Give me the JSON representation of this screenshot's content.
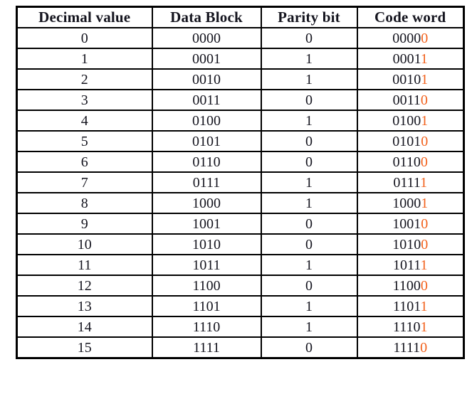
{
  "table": {
    "headers": [
      "Decimal value",
      "Data Block",
      "Parity bit",
      "Code word"
    ],
    "rows": [
      {
        "decimal": "0",
        "data_block": "0000",
        "parity_bit": "0",
        "code_word_data": "0000",
        "code_word_parity": "0"
      },
      {
        "decimal": "1",
        "data_block": "0001",
        "parity_bit": "1",
        "code_word_data": "0001",
        "code_word_parity": "1"
      },
      {
        "decimal": "2",
        "data_block": "0010",
        "parity_bit": "1",
        "code_word_data": "0010",
        "code_word_parity": "1"
      },
      {
        "decimal": "3",
        "data_block": "0011",
        "parity_bit": "0",
        "code_word_data": "0011",
        "code_word_parity": "0"
      },
      {
        "decimal": "4",
        "data_block": "0100",
        "parity_bit": "1",
        "code_word_data": "0100",
        "code_word_parity": "1"
      },
      {
        "decimal": "5",
        "data_block": "0101",
        "parity_bit": "0",
        "code_word_data": "0101",
        "code_word_parity": "0"
      },
      {
        "decimal": "6",
        "data_block": "0110",
        "parity_bit": "0",
        "code_word_data": "0110",
        "code_word_parity": "0"
      },
      {
        "decimal": "7",
        "data_block": "0111",
        "parity_bit": "1",
        "code_word_data": "0111",
        "code_word_parity": "1"
      },
      {
        "decimal": "8",
        "data_block": "1000",
        "parity_bit": "1",
        "code_word_data": "1000",
        "code_word_parity": "1"
      },
      {
        "decimal": "9",
        "data_block": "1001",
        "parity_bit": "0",
        "code_word_data": "1001",
        "code_word_parity": "0"
      },
      {
        "decimal": "10",
        "data_block": "1010",
        "parity_bit": "0",
        "code_word_data": "1010",
        "code_word_parity": "0"
      },
      {
        "decimal": "11",
        "data_block": "1011",
        "parity_bit": "1",
        "code_word_data": "1011",
        "code_word_parity": "1"
      },
      {
        "decimal": "12",
        "data_block": "1100",
        "parity_bit": "0",
        "code_word_data": "1100",
        "code_word_parity": "0"
      },
      {
        "decimal": "13",
        "data_block": "1101",
        "parity_bit": "1",
        "code_word_data": "1101",
        "code_word_parity": "1"
      },
      {
        "decimal": "14",
        "data_block": "1110",
        "parity_bit": "1",
        "code_word_data": "1110",
        "code_word_parity": "1"
      },
      {
        "decimal": "15",
        "data_block": "1111",
        "parity_bit": "0",
        "code_word_data": "1111",
        "code_word_parity": "0"
      }
    ]
  },
  "colors": {
    "text": "#14141e",
    "parity_highlight": "#f2611c",
    "border": "#000000",
    "background": "#ffffff"
  }
}
